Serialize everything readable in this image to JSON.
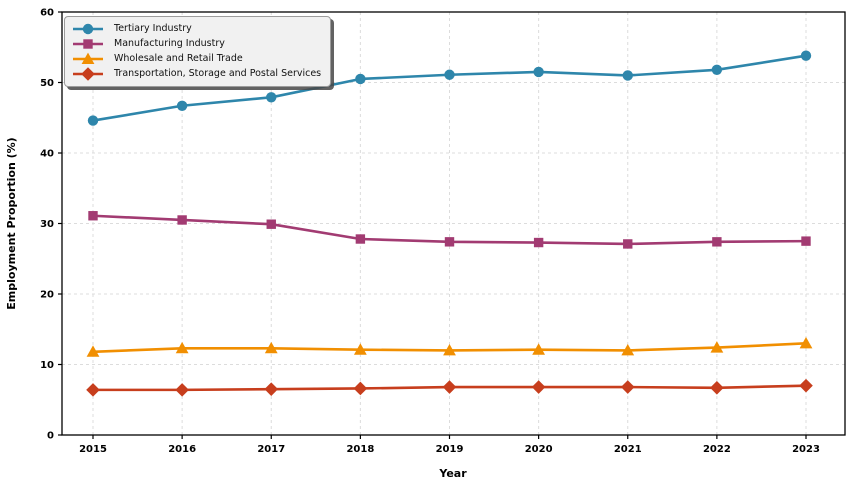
{
  "chart_data": {
    "type": "line",
    "title": "",
    "xlabel": "Year",
    "ylabel": "Employment Proportion (%)",
    "x": [
      2015,
      2016,
      2017,
      2018,
      2019,
      2020,
      2021,
      2022,
      2023
    ],
    "ylim": [
      0,
      60
    ],
    "yticks": [
      0,
      10,
      20,
      30,
      40,
      50,
      60
    ],
    "grid": true,
    "grid_style": "dashed",
    "grid_color": "#dcdcdc",
    "legend_position": "upper-left",
    "series": [
      {
        "name": "Tertiary Industry",
        "color": "#2E86AB",
        "marker": "circle",
        "values": [
          44.6,
          46.7,
          47.9,
          50.5,
          51.1,
          51.5,
          51.0,
          51.8,
          53.8
        ]
      },
      {
        "name": "Manufacturing Industry",
        "color": "#A23B72",
        "marker": "square",
        "values": [
          31.1,
          30.5,
          29.9,
          27.8,
          27.4,
          27.3,
          27.1,
          27.4,
          27.5
        ]
      },
      {
        "name": "Wholesale and Retail Trade",
        "color": "#F18F01",
        "marker": "triangle",
        "values": [
          11.8,
          12.3,
          12.3,
          12.1,
          12.0,
          12.1,
          12.0,
          12.4,
          13.0
        ]
      },
      {
        "name": "Transportation, Storage and Postal Services",
        "color": "#C73E1D",
        "marker": "diamond",
        "values": [
          6.4,
          6.4,
          6.5,
          6.6,
          6.8,
          6.8,
          6.8,
          6.7,
          7.0
        ]
      }
    ]
  }
}
